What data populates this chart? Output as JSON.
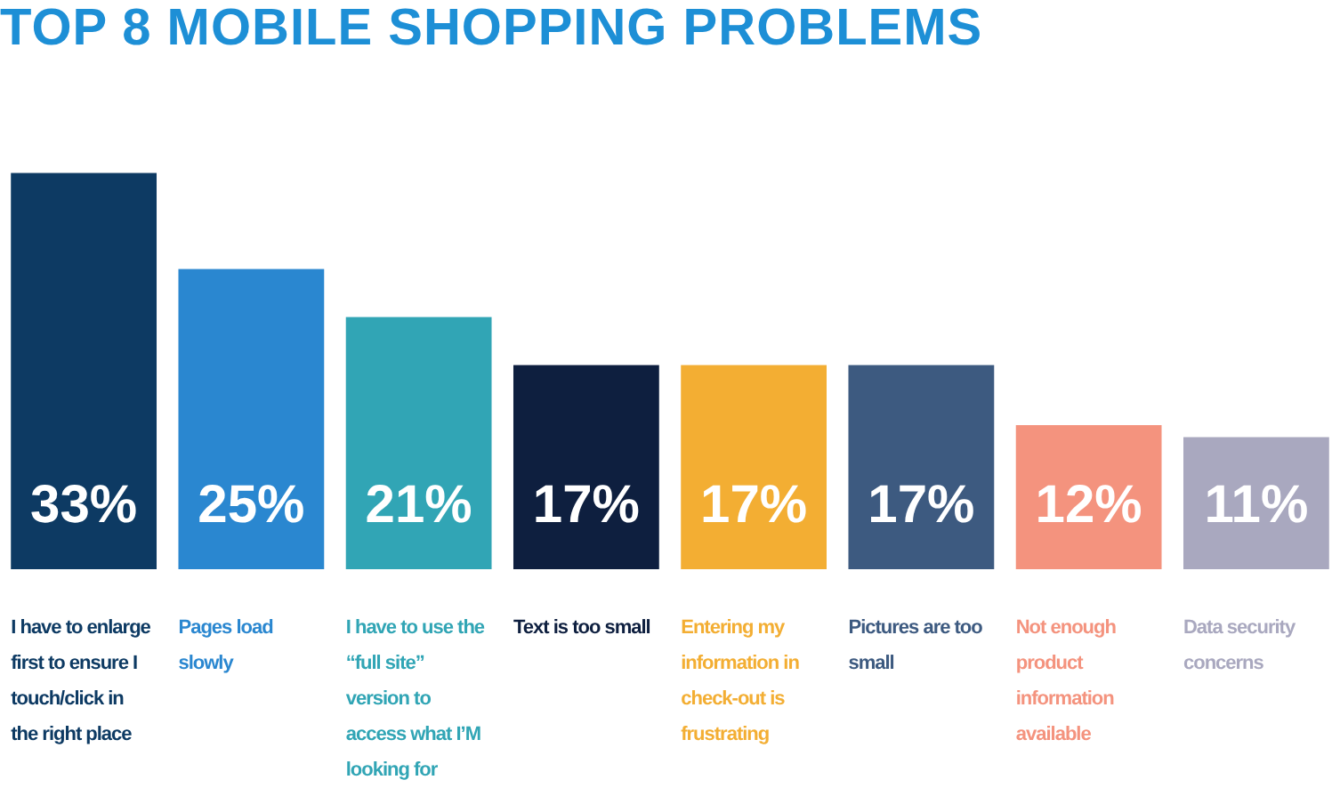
{
  "chart_data": {
    "type": "bar",
    "title": "TOP 8 MOBILE SHOPPING PROBLEMS",
    "categories": [
      "I have to enlarge first to ensure I touch/click in the right place",
      "Pages load slowly",
      "I have to use the “full site” version to access what I’M looking for",
      "Text is too small",
      "Entering my information in check-out is frustrating",
      "Pictures are too small",
      "Not enough product information available",
      "Data security concerns"
    ],
    "values": [
      33,
      25,
      21,
      17,
      17,
      17,
      12,
      11
    ],
    "colors": [
      "#0d3a63",
      "#2a87d0",
      "#31a5b5",
      "#0e1f3f",
      "#f3ae33",
      "#3d5a80",
      "#f4937e",
      "#a9a8bf"
    ],
    "value_labels": [
      "33%",
      "25%",
      "21%",
      "17%",
      "17%",
      "17%",
      "12%",
      "11%"
    ],
    "legend": false
  }
}
